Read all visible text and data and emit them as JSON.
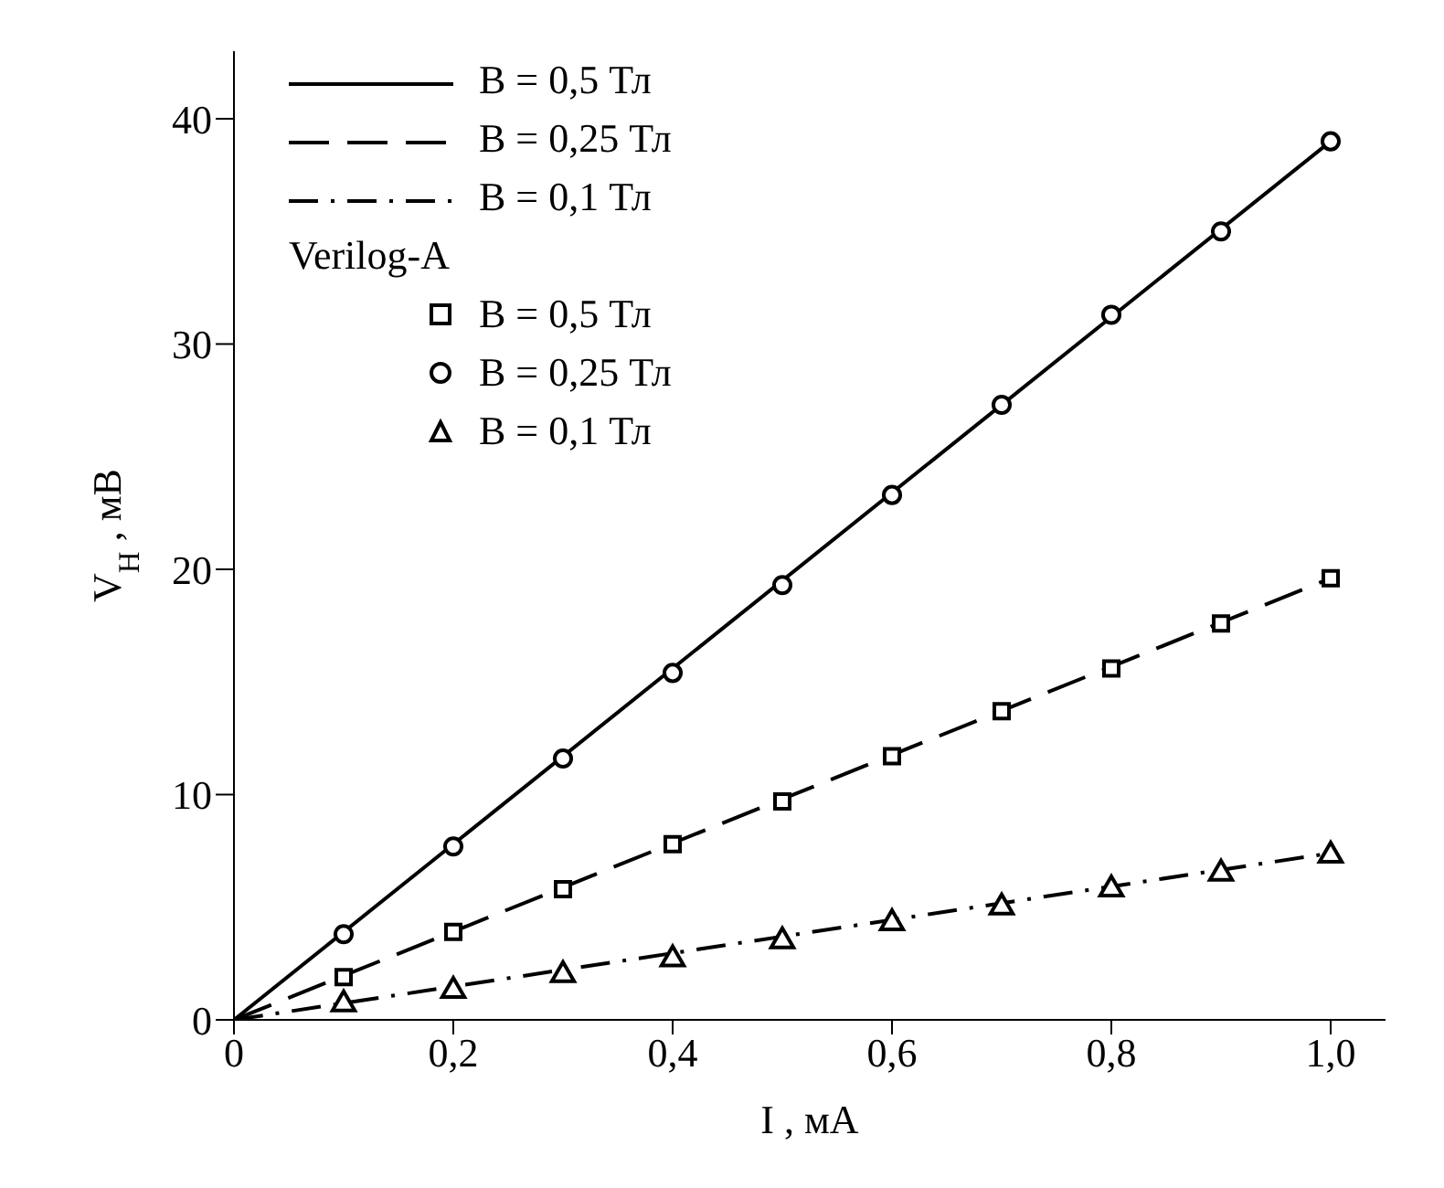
{
  "chart_data": {
    "type": "line",
    "xlabel": "I , мА",
    "ylabel": "V$_{H}$ , мВ",
    "legend_title": "Verilog-A",
    "legend": "top left",
    "grid": false,
    "xlim": [
      0,
      1.05
    ],
    "xticks": [
      0,
      {
        "value": 0.2,
        "label": "0,2"
      },
      {
        "value": 0.4,
        "label": "0,4"
      },
      {
        "value": 0.6,
        "label": "0,6"
      },
      {
        "value": 0.8,
        "label": "0,8"
      },
      {
        "value": 1.0,
        "label": "1,0"
      }
    ],
    "ylim": [
      0,
      43
    ],
    "yticks": [
      0,
      10,
      20,
      30,
      40
    ],
    "series": [
      {
        "name": "B = 0,5 Тл",
        "color": "#000000",
        "line_style": "solid",
        "marker": "none",
        "x": [
          0,
          1
        ],
        "values": [
          0,
          39
        ]
      },
      {
        "name": "B = 0,25 Тл",
        "color": "#000000",
        "line_style": "dashed",
        "marker": "none",
        "x": [
          0,
          1
        ],
        "values": [
          0,
          19.6
        ]
      },
      {
        "name": "B = 0,1 Тл",
        "color": "#000000",
        "line_style": "dashdot",
        "marker": "none",
        "x": [
          0,
          1
        ],
        "values": [
          0,
          7.4
        ]
      },
      {
        "name": "B = 0,5 Тл",
        "type": "scatter",
        "color": "#000000",
        "marker": "square",
        "x": [
          0.1,
          0.2,
          0.3,
          0.4,
          0.5,
          0.6,
          0.7,
          0.8,
          0.9,
          1.0
        ],
        "values": [
          1.9,
          3.9,
          5.8,
          7.8,
          9.7,
          11.7,
          13.7,
          15.6,
          17.6,
          19.6
        ]
      },
      {
        "name": "B = 0,25 Тл",
        "type": "scatter",
        "color": "#000000",
        "marker": "circle",
        "x": [
          0.1,
          0.2,
          0.3,
          0.4,
          0.5,
          0.6,
          0.7,
          0.8,
          0.9,
          1.0
        ],
        "values": [
          3.8,
          7.7,
          11.6,
          15.4,
          19.3,
          23.3,
          27.3,
          31.3,
          35.0,
          39.0
        ]
      },
      {
        "name": "B = 0,1 Тл",
        "type": "scatter",
        "color": "#000000",
        "marker": "triangle",
        "x": [
          0.1,
          0.2,
          0.3,
          0.4,
          0.5,
          0.6,
          0.7,
          0.8,
          0.9,
          1.0
        ],
        "values": [
          0.7,
          1.3,
          2.0,
          2.7,
          3.5,
          4.3,
          5.0,
          5.8,
          6.5,
          7.3
        ]
      }
    ]
  }
}
